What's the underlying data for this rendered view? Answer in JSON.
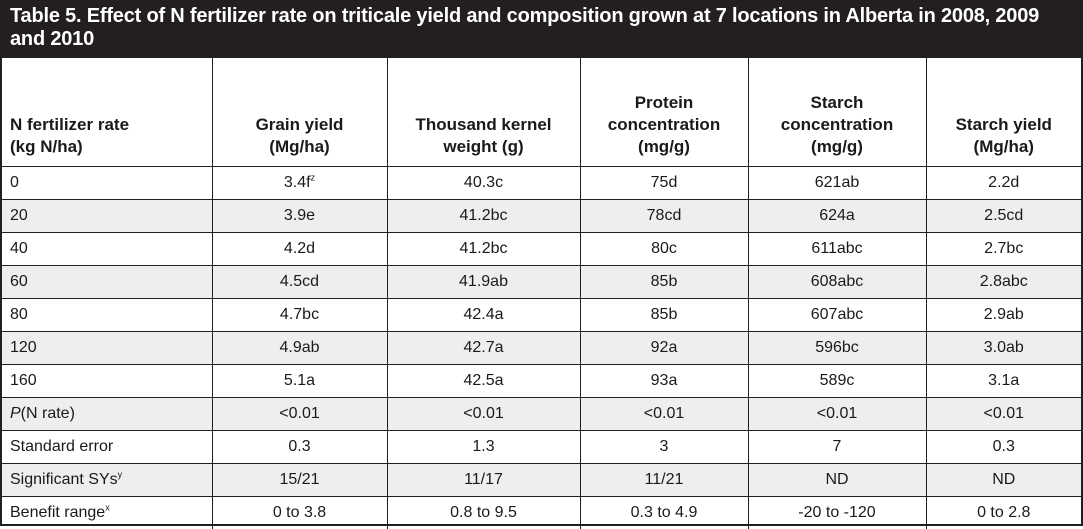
{
  "title": "Table 5. Effect of N fertilizer rate on triticale yield and composition grown at 7 locations in Alberta in 2008, 2009 and 2010",
  "headers": [
    {
      "lines": [
        "N fertilizer rate",
        "(kg N/ha)"
      ]
    },
    {
      "lines": [
        "Grain yield",
        "(Mg/ha)"
      ]
    },
    {
      "lines": [
        "Thousand kernel",
        "weight (g)"
      ]
    },
    {
      "lines": [
        "Protein",
        "concentration",
        "(mg/g)"
      ]
    },
    {
      "lines": [
        "Starch",
        "concentration",
        "(mg/g)"
      ]
    },
    {
      "lines": [
        "Starch yield",
        "(Mg/ha)"
      ]
    }
  ],
  "rows": [
    {
      "label": "0",
      "cells": [
        "3.4f",
        "40.3c",
        "75d",
        "621ab",
        "2.2d"
      ],
      "grain_sup": "z"
    },
    {
      "label": "20",
      "cells": [
        "3.9e",
        "41.2bc",
        "78cd",
        "624a",
        "2.5cd"
      ]
    },
    {
      "label": "40",
      "cells": [
        "4.2d",
        "41.2bc",
        "80c",
        "611abc",
        "2.7bc"
      ]
    },
    {
      "label": "60",
      "cells": [
        "4.5cd",
        "41.9ab",
        "85b",
        "608abc",
        "2.8abc"
      ]
    },
    {
      "label": "80",
      "cells": [
        "4.7bc",
        "42.4a",
        "85b",
        "607abc",
        "2.9ab"
      ]
    },
    {
      "label": "120",
      "cells": [
        "4.9ab",
        "42.7a",
        "92a",
        "596bc",
        "3.0ab"
      ]
    },
    {
      "label": "160",
      "cells": [
        "5.1a",
        "42.5a",
        "93a",
        "589c",
        "3.1a"
      ]
    },
    {
      "label_italic": "P",
      "label_rest": "(N rate)",
      "cells": [
        "<0.01",
        "<0.01",
        "<0.01",
        "<0.01",
        "<0.01"
      ]
    },
    {
      "label": "Standard error",
      "cells": [
        "0.3",
        "1.3",
        "3",
        "7",
        "0.3"
      ]
    },
    {
      "label": "Significant SYs",
      "label_sup": "y",
      "cells": [
        "15/21",
        "11/17",
        "11/21",
        "ND",
        "ND"
      ]
    },
    {
      "label": "Benefit range",
      "label_sup": "x",
      "cells": [
        "0 to 3.8",
        "0.8 to 9.5",
        "0.3 to 4.9",
        "-20 to -120",
        "0 to 2.8"
      ]
    }
  ]
}
